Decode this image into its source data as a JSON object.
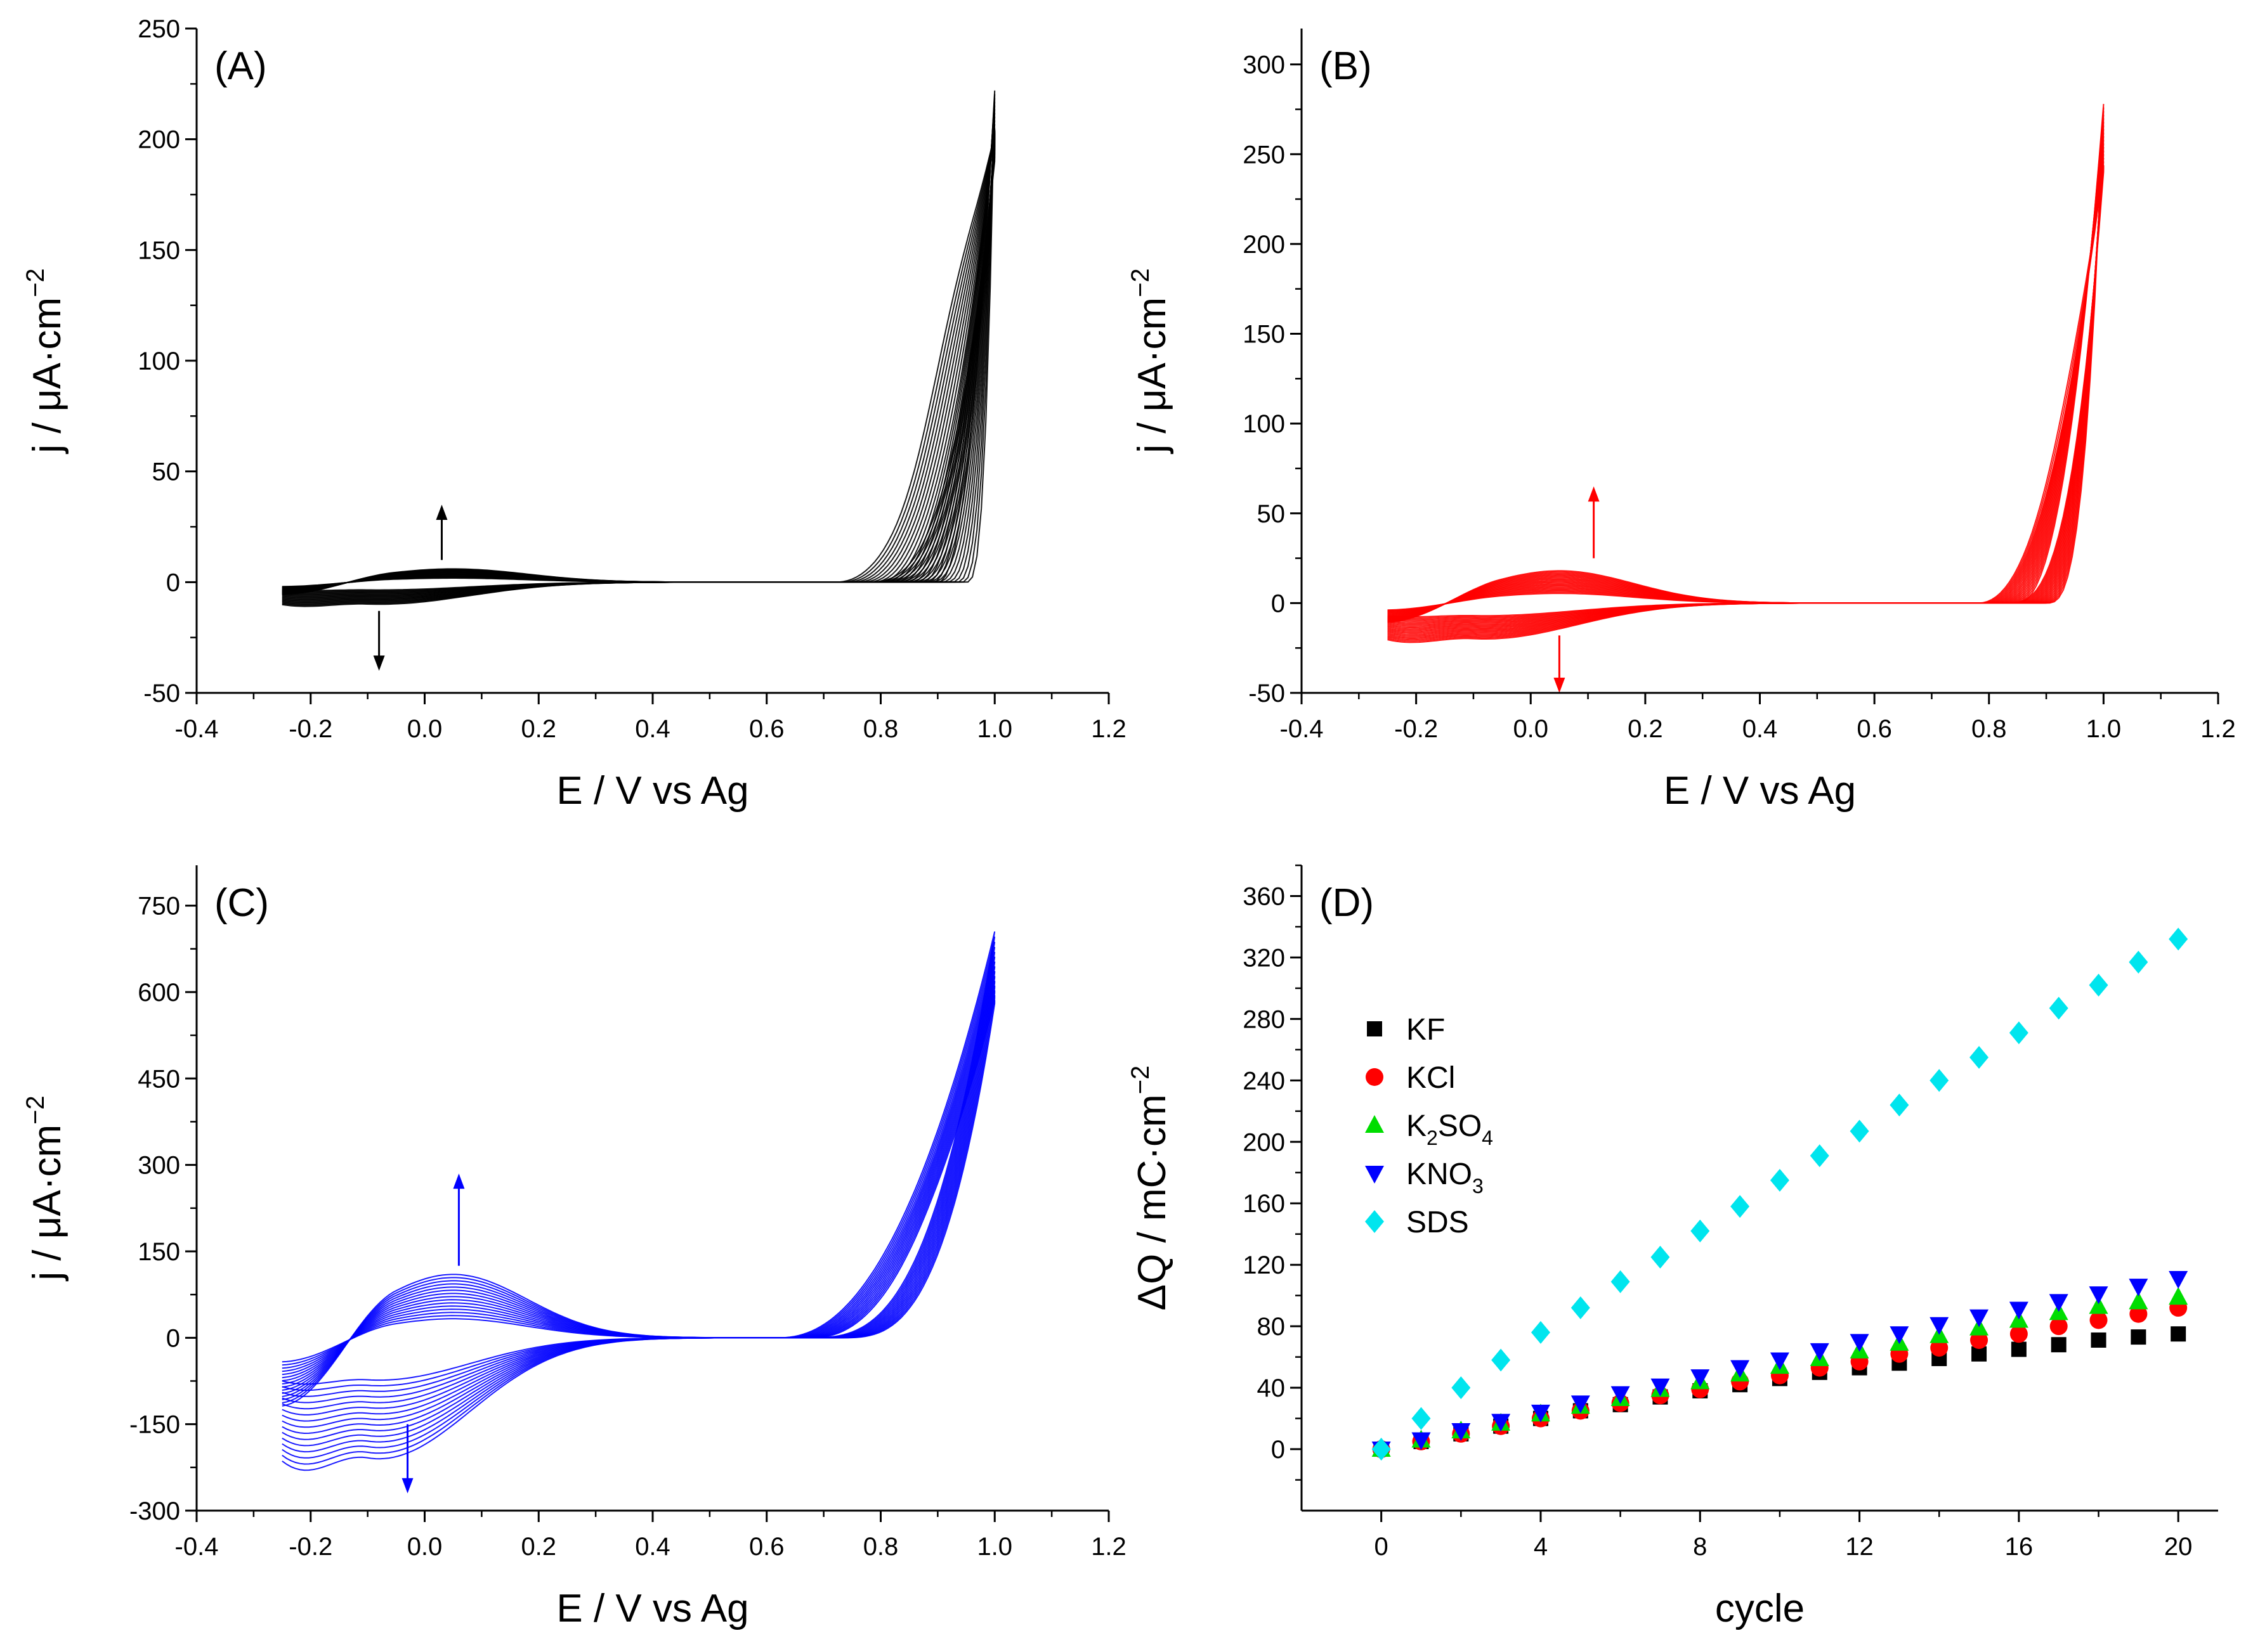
{
  "chart_data": [
    {
      "type": "line",
      "panel": "(A)",
      "color": "#000000",
      "xlabel": "E / V vs Ag",
      "ylabel": "j / μA·cm",
      "ylabel_sup": "−2",
      "xlim": [
        -0.4,
        1.2
      ],
      "ylim": [
        -50,
        250
      ],
      "xticks": [
        -0.4,
        -0.2,
        0.0,
        0.2,
        0.4,
        0.6,
        0.8,
        1.0,
        1.2
      ],
      "xtick_labels": [
        "-0.4",
        "-0.2",
        "0.0",
        "0.2",
        "0.4",
        "0.6",
        "0.8",
        "1.0",
        "1.2"
      ],
      "yticks": [
        -50,
        0,
        50,
        100,
        150,
        200,
        250
      ],
      "ytick_labels": [
        "-50",
        "0",
        "50",
        "100",
        "150",
        "200",
        "250"
      ],
      "cv": {
        "cycles": 20,
        "e_start": -0.25,
        "e_end": 1.0,
        "onset_first": 0.72,
        "onset_last": 0.9,
        "peak_first": 220,
        "end_current_first": 190,
        "end_current_last": 222,
        "redox_anodic_peak": 6,
        "redox_cathodic_min": -10
      },
      "arrows": [
        {
          "e": 0.03,
          "from": 10,
          "to": 35,
          "direction": "up"
        },
        {
          "e": -0.08,
          "from": -13,
          "to": -40,
          "direction": "down"
        }
      ]
    },
    {
      "type": "line",
      "panel": "(B)",
      "color": "#ff0000",
      "xlabel": "E / V vs Ag",
      "ylabel": "j / μA·cm",
      "ylabel_sup": "−2",
      "xlim": [
        -0.4,
        1.2
      ],
      "ylim": [
        -50,
        320
      ],
      "xticks": [
        -0.4,
        -0.2,
        0.0,
        0.2,
        0.4,
        0.6,
        0.8,
        1.0,
        1.2
      ],
      "xtick_labels": [
        "-0.4",
        "-0.2",
        "0.0",
        "0.2",
        "0.4",
        "0.6",
        "0.8",
        "1.0",
        "1.2"
      ],
      "yticks": [
        -50,
        0,
        50,
        100,
        150,
        200,
        250,
        300
      ],
      "ytick_labels": [
        "-50",
        "0",
        "50",
        "100",
        "150",
        "200",
        "250",
        "300"
      ],
      "cv": {
        "cycles": 20,
        "e_start": -0.25,
        "e_end": 1.0,
        "onset_first": 0.78,
        "onset_last": 0.85,
        "peak_first": 248,
        "end_current_first": 240,
        "end_current_last": 278,
        "redox_anodic_peak": 18,
        "redox_cathodic_min": -20
      },
      "arrows": [
        {
          "e": 0.11,
          "from": 25,
          "to": 65,
          "direction": "up"
        },
        {
          "e": 0.05,
          "from": -18,
          "to": -50,
          "direction": "down"
        }
      ]
    },
    {
      "type": "line",
      "panel": "(C)",
      "color": "#0000ff",
      "xlabel": "E / V vs Ag",
      "ylabel": "j / μA·cm",
      "ylabel_sup": "−2",
      "xlim": [
        -0.4,
        1.2
      ],
      "ylim": [
        -300,
        820
      ],
      "xticks": [
        -0.4,
        -0.2,
        0.0,
        0.2,
        0.4,
        0.6,
        0.8,
        1.0,
        1.2
      ],
      "xtick_labels": [
        "-0.4",
        "-0.2",
        "0.0",
        "0.2",
        "0.4",
        "0.6",
        "0.8",
        "1.0",
        "1.2"
      ],
      "yticks": [
        -300,
        -150,
        0,
        150,
        300,
        450,
        600,
        750
      ],
      "ytick_labels": [
        "-300",
        "-150",
        "0",
        "150",
        "300",
        "450",
        "600",
        "750"
      ],
      "cv": {
        "cycles": 15,
        "e_start": -0.25,
        "e_end": 1.0,
        "onset_first": 0.62,
        "onset_last": 0.68,
        "peak_first": 700,
        "end_current_first": 705,
        "end_current_last": 580,
        "redox_anodic_peak": 110,
        "redox_cathodic_min": -210
      },
      "arrows": [
        {
          "e": 0.06,
          "from": 125,
          "to": 285,
          "direction": "up"
        },
        {
          "e": -0.03,
          "from": -150,
          "to": -270,
          "direction": "down"
        }
      ]
    },
    {
      "type": "scatter",
      "panel": "(D)",
      "xlabel": "cycle",
      "ylabel": "ΔQ / mC·cm",
      "ylabel_sup": "−2",
      "xlim": [
        -2,
        21
      ],
      "ylim": [
        -40,
        380
      ],
      "xticks": [
        0,
        4,
        8,
        12,
        16,
        20
      ],
      "xtick_labels": [
        "0",
        "4",
        "8",
        "12",
        "16",
        "20"
      ],
      "yticks": [
        0,
        40,
        80,
        120,
        160,
        200,
        240,
        280,
        320,
        360
      ],
      "ytick_labels": [
        "0",
        "40",
        "80",
        "120",
        "160",
        "200",
        "240",
        "280",
        "320",
        "360"
      ],
      "legend_position": "left",
      "x": [
        0,
        1,
        2,
        3,
        4,
        5,
        6,
        7,
        8,
        9,
        10,
        11,
        12,
        13,
        14,
        15,
        16,
        17,
        18,
        19,
        20
      ],
      "series": [
        {
          "name": "KF",
          "label_main": "KF",
          "label_sub": "",
          "label_tail": "",
          "marker": "square",
          "color": "#000000",
          "values": [
            0,
            5,
            10,
            15,
            20,
            25,
            29,
            34,
            38,
            42,
            46,
            50,
            53,
            56,
            59,
            62,
            65,
            68,
            71,
            73,
            75
          ]
        },
        {
          "name": "KCl",
          "label_main": "KCl",
          "label_sub": "",
          "label_tail": "",
          "marker": "circle",
          "color": "#ff0000",
          "values": [
            0,
            5,
            10,
            15,
            20,
            25,
            30,
            35,
            39,
            44,
            48,
            53,
            57,
            62,
            66,
            71,
            75,
            80,
            84,
            88,
            92
          ]
        },
        {
          "name": "K2SO4",
          "label_main": "K",
          "label_sub": "2",
          "label_tail": "SO",
          "label_sub2": "4",
          "marker": "triangle-up",
          "color": "#00dd00",
          "values": [
            0,
            6,
            12,
            17,
            23,
            28,
            33,
            39,
            44,
            49,
            54,
            59,
            64,
            69,
            74,
            79,
            84,
            89,
            93,
            96,
            99
          ]
        },
        {
          "name": "KNO3",
          "label_main": "KNO",
          "label_sub": "3",
          "label_tail": "",
          "marker": "triangle-down",
          "color": "#0000ff",
          "values": [
            0,
            6,
            12,
            18,
            24,
            30,
            36,
            41,
            47,
            53,
            58,
            64,
            70,
            75,
            81,
            86,
            91,
            96,
            101,
            106,
            111
          ]
        },
        {
          "name": "SDS",
          "label_main": "SDS",
          "label_sub": "",
          "label_tail": "",
          "marker": "diamond",
          "color": "#00e5ee",
          "values": [
            0,
            20,
            40,
            58,
            76,
            92,
            109,
            125,
            142,
            158,
            175,
            191,
            207,
            224,
            240,
            255,
            271,
            287,
            302,
            317,
            332
          ]
        }
      ]
    }
  ]
}
